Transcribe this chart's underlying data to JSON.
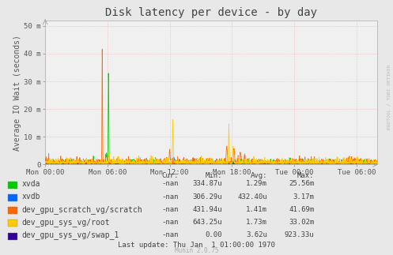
{
  "title": "Disk latency per device - by day",
  "ylabel": "Average IO Wait (seconds)",
  "background_color": "#e8e8e8",
  "plot_bg_color": "#f0f0f0",
  "grid_color": "#ff9999",
  "grid_dot_color": "#ffcccc",
  "yticks": [
    0,
    10,
    20,
    30,
    40,
    50
  ],
  "ytick_labels": [
    "0",
    "10 m",
    "20 m",
    "30 m",
    "40 m",
    "50 m"
  ],
  "ylim": [
    0,
    52
  ],
  "xtick_labels": [
    "Mon 00:00",
    "Mon 06:00",
    "Mon 12:00",
    "Mon 18:00",
    "Tue 00:00",
    "Tue 06:00"
  ],
  "xtick_pos": [
    0,
    6,
    12,
    18,
    24,
    30
  ],
  "xlim": [
    0,
    32
  ],
  "series": [
    {
      "name": "xvda",
      "color": "#00cc00"
    },
    {
      "name": "xvdb",
      "color": "#0066ff"
    },
    {
      "name": "dev_gpu_scratch_vg/scratch",
      "color": "#ff6600"
    },
    {
      "name": "dev_gpu_sys_vg/root",
      "color": "#ffcc00"
    },
    {
      "name": "dev_gpu_sys_vg/swap_1",
      "color": "#330099"
    }
  ],
  "table_headers": [
    "Cur:",
    "Min:",
    "Avg:",
    "Max:"
  ],
  "table_rows": [
    [
      "-nan",
      "334.87u",
      "1.29m",
      "25.56m"
    ],
    [
      "-nan",
      "306.29u",
      "432.40u",
      "3.17m"
    ],
    [
      "-nan",
      "431.94u",
      "1.41m",
      "41.69m"
    ],
    [
      "-nan",
      "643.25u",
      "1.73m",
      "33.02m"
    ],
    [
      "-nan",
      "0.00",
      "3.62u",
      "923.33u"
    ]
  ],
  "last_update": "Last update: Thu Jan  1 01:00:00 1970",
  "munin_version": "Munin 2.0.75",
  "watermark": "RRDTOOL / TOBI OETIKER",
  "title_fontsize": 10,
  "axis_label_fontsize": 7,
  "tick_fontsize": 6.5,
  "legend_fontsize": 7,
  "table_fontsize": 6.5
}
